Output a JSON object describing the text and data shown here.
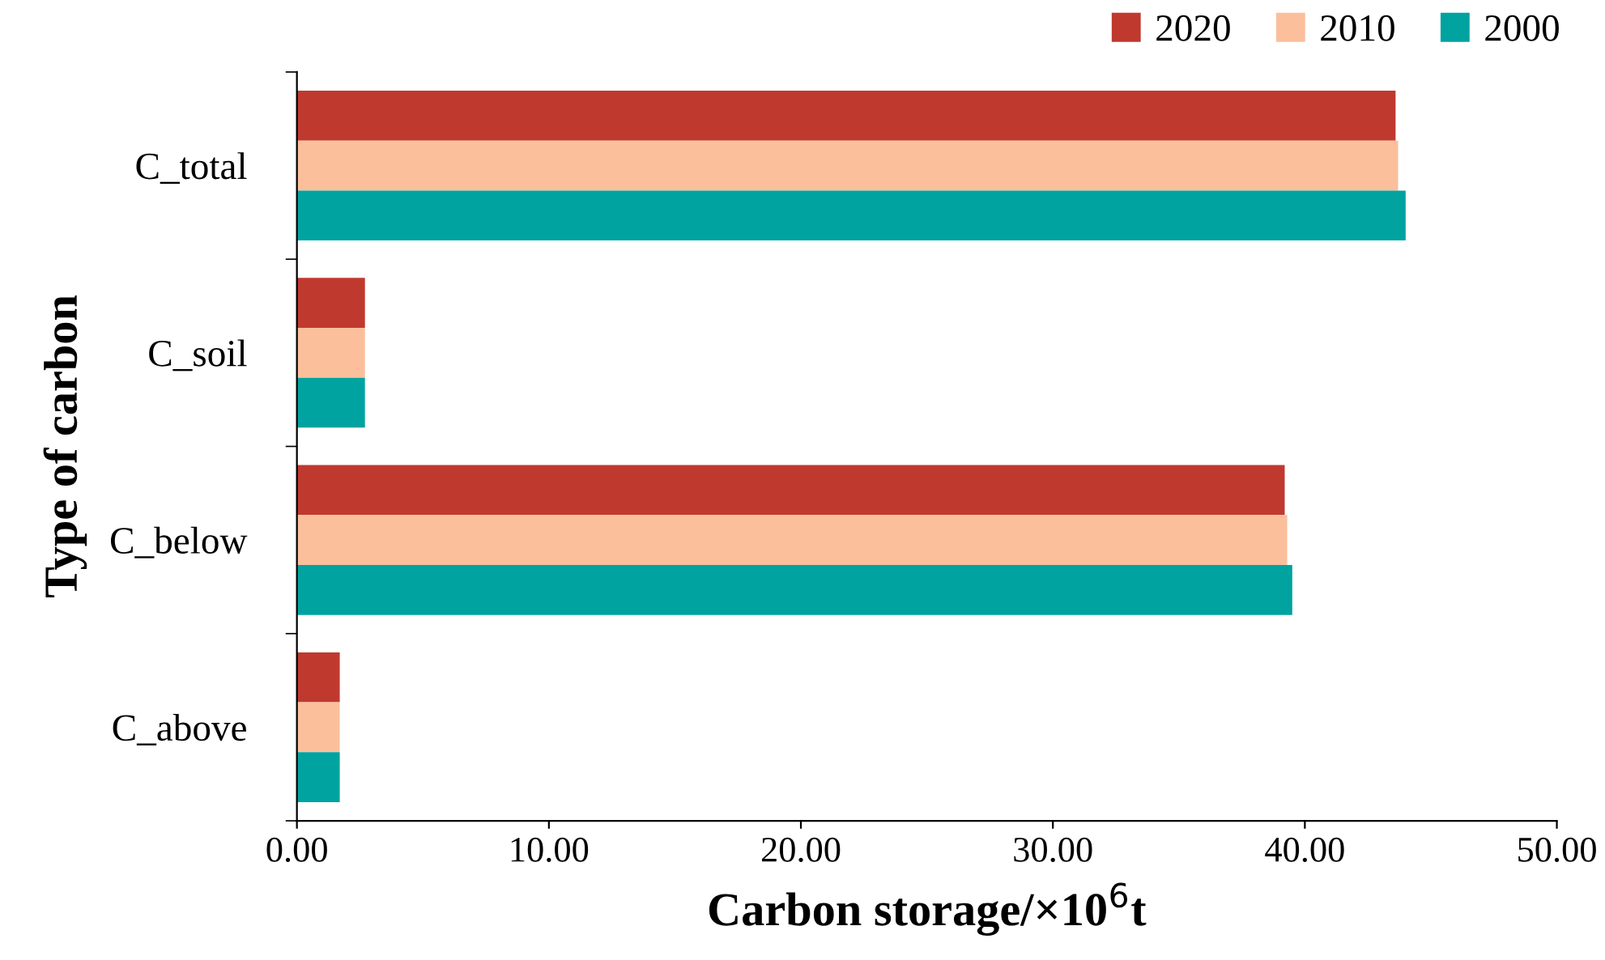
{
  "chart_data": {
    "type": "bar",
    "orientation": "horizontal",
    "categories": [
      "C_total",
      "C_soil",
      "C_below",
      "C_above"
    ],
    "series": [
      {
        "name": "2020",
        "color": "#c0392f",
        "values": [
          43.6,
          2.7,
          39.2,
          1.7
        ]
      },
      {
        "name": "2010",
        "color": "#fbbf9c",
        "values": [
          43.7,
          2.7,
          39.3,
          1.7
        ]
      },
      {
        "name": "2000",
        "color": "#00a3a0",
        "values": [
          44.0,
          2.7,
          39.5,
          1.7
        ]
      }
    ],
    "xlim": [
      0,
      50
    ],
    "xticks": [
      {
        "value": 0,
        "label": "0.00"
      },
      {
        "value": 10,
        "label": "10.00"
      },
      {
        "value": 20,
        "label": "20.00"
      },
      {
        "value": 30,
        "label": "30.00"
      },
      {
        "value": 40,
        "label": "40.00"
      },
      {
        "value": 50,
        "label": "50.00"
      }
    ],
    "xlabel": "Carbon storage/×10$^{6}$t",
    "ylabel": "Type of carbon",
    "legend": "top right",
    "grid": false
  }
}
